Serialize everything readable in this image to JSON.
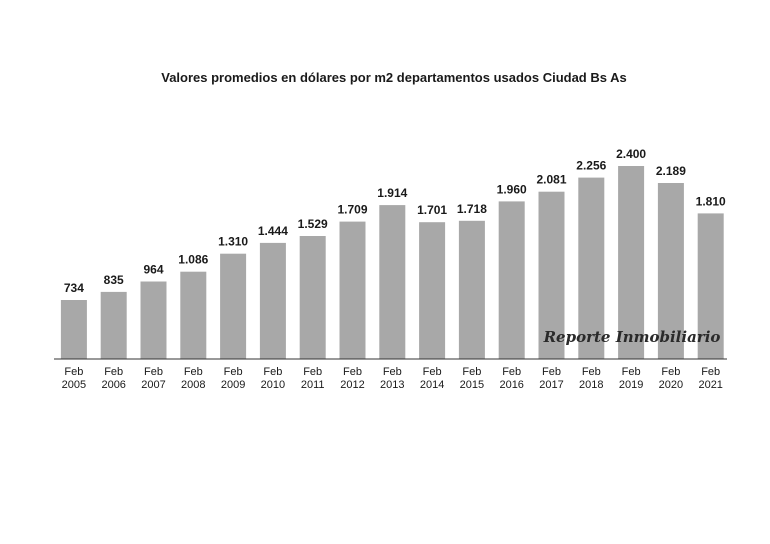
{
  "chart_data": {
    "type": "bar",
    "title": "Valores promedios en dólares por m2 departamentos usados Ciudad Bs As",
    "xlabel": "",
    "ylabel": "",
    "categories": [
      [
        "Feb",
        "2005"
      ],
      [
        "Feb",
        "2006"
      ],
      [
        "Feb",
        "2007"
      ],
      [
        "Feb",
        "2008"
      ],
      [
        "Feb",
        "2009"
      ],
      [
        "Feb",
        "2010"
      ],
      [
        "Feb",
        "2011"
      ],
      [
        "Feb",
        "2012"
      ],
      [
        "Feb",
        "2013"
      ],
      [
        "Feb",
        "2014"
      ],
      [
        "Feb",
        "2015"
      ],
      [
        "Feb",
        "2016"
      ],
      [
        "Feb",
        "2017"
      ],
      [
        "Feb",
        "2018"
      ],
      [
        "Feb",
        "2019"
      ],
      [
        "Feb",
        "2020"
      ],
      [
        "Feb",
        "2021"
      ]
    ],
    "values": [
      734,
      835,
      964,
      1086,
      1310,
      1444,
      1529,
      1709,
      1914,
      1701,
      1718,
      1960,
      2081,
      2256,
      2400,
      2189,
      1810
    ],
    "value_labels": [
      "734",
      "835",
      "964",
      "1.086",
      "1.310",
      "1.444",
      "1.529",
      "1.709",
      "1.914",
      "1.701",
      "1.718",
      "1.960",
      "2.081",
      "2.256",
      "2.400",
      "2.189",
      "1.810"
    ],
    "ylim": [
      0,
      2400
    ],
    "grid": false,
    "legend": "none",
    "bar_color": "#a8a8a8",
    "watermark": "Reporte Inmobiliario"
  }
}
